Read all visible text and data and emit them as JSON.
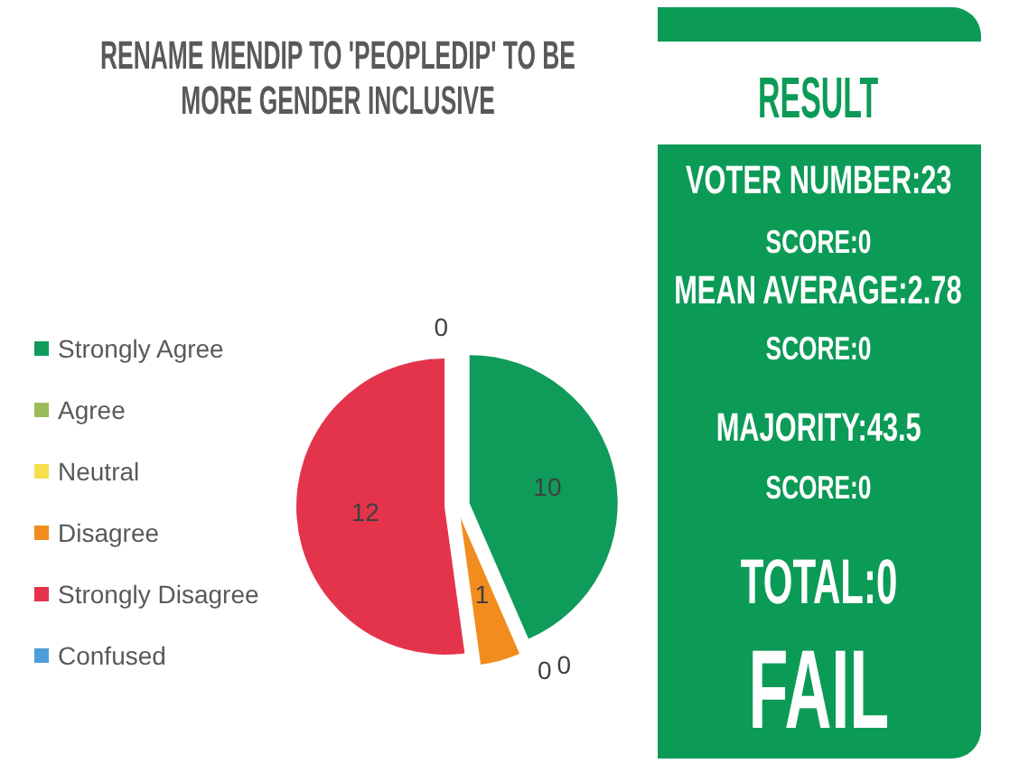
{
  "chart_data": [
    {
      "type": "pie",
      "title": "RENAME MENDIP TO 'PEOPLEDIP' TO BE MORE GENDER INCLUSIVE",
      "categories": [
        "Strongly Agree",
        "Agree",
        "Neutral",
        "Disagree",
        "Strongly Disagree",
        "Confused"
      ],
      "values": [
        10,
        0,
        0,
        1,
        12,
        0
      ],
      "value_labels": [
        "10",
        "0",
        "0",
        "1",
        "12",
        "0"
      ],
      "colors": [
        "#0f9b5a",
        "#9bbb59",
        "#f5df4d",
        "#f28c1f",
        "#e3344b",
        "#4e9fd9"
      ],
      "legend": "left"
    },
    {
      "type": "other",
      "title": "RESULT",
      "color": "#0c9b57",
      "annotations": [
        "VOTER NUMBER:23",
        "SCORE:0",
        "MEAN AVERAGE:2.78",
        "SCORE:0",
        "MAJORITY:43.5",
        "SCORE:0",
        "TOTAL:0",
        "FAIL"
      ]
    }
  ]
}
